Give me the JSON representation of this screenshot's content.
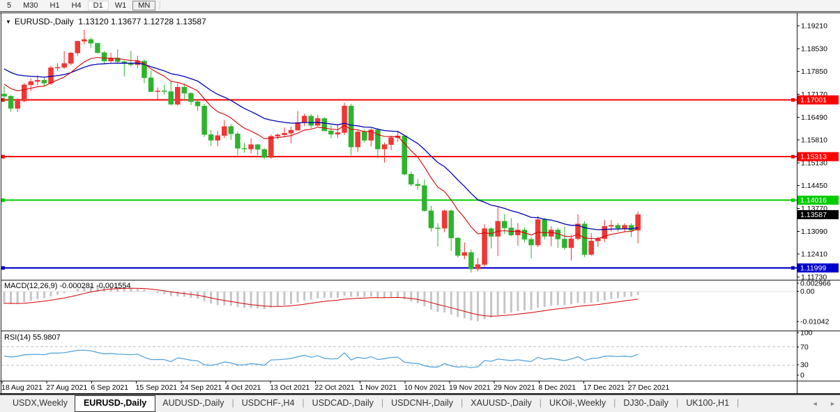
{
  "toolbar": {
    "timeframes": [
      "5",
      "M30",
      "H1",
      "H4",
      "D1",
      "W1",
      "MN"
    ],
    "selected": "D1",
    "pressed": "MN"
  },
  "chart": {
    "symbol": "EURUSD-,Daily",
    "title_text": "EURUSD-,Daily  1.13120 1.13677 1.12728 1.13587",
    "ohlc": {
      "open": "1.13120",
      "high": "1.13677",
      "low": "1.12728",
      "close": "1.13587"
    },
    "caret_icon": "▼"
  },
  "price_axis": {
    "ticks": [
      "1.19210",
      "1.18530",
      "1.17850",
      "1.17170",
      "1.16490",
      "1.15810",
      "1.15130",
      "1.14450",
      "1.13770",
      "1.13090",
      "1.12410",
      "1.11730"
    ],
    "badges": [
      {
        "value": "1.17001",
        "price": 1.17001,
        "color": "#ff0000",
        "text_color": "#ffffff"
      },
      {
        "value": "1.15313",
        "price": 1.15313,
        "color": "#ff0000",
        "text_color": "#ffffff"
      },
      {
        "value": "1.14016",
        "price": 1.14016,
        "color": "#00cc00",
        "text_color": "#ffffff"
      },
      {
        "value": "1.13587",
        "price": 1.13587,
        "color": "#000000",
        "text_color": "#ffffff"
      },
      {
        "value": "1.11999",
        "price": 1.11999,
        "color": "#0000cc",
        "text_color": "#ffffff"
      }
    ]
  },
  "indicators": {
    "macd": {
      "name": "MACD",
      "params": "12,26,9",
      "macd_value": "-0.000281",
      "signal_value": "-0.001554",
      "label_full": "MACD(12,26,9) -0.000281 -0.001554",
      "axis": [
        "0.002966",
        "0.00",
        "-0.01042"
      ]
    },
    "rsi": {
      "name": "RSI",
      "params": "14",
      "value": "55.9807",
      "label_full": "RSI(14) 55.9807",
      "axis": [
        "100",
        "70",
        "30",
        "0"
      ],
      "guides": [
        70,
        30
      ]
    }
  },
  "date_axis": {
    "labels": [
      "18 Aug 2021",
      "27 Aug 2021",
      "6 Sep 2021",
      "15 Sep 2021",
      "24 Sep 2021",
      "4 Oct 2021",
      "13 Oct 2021",
      "22 Oct 2021",
      "1 Nov 2021",
      "10 Nov 2021",
      "19 Nov 2021",
      "29 Nov 2021",
      "8 Dec 2021",
      "17 Dec 2021",
      "27 Dec 2021"
    ]
  },
  "tabs": {
    "items": [
      "USDX,Weekly",
      "EURUSD-,Daily",
      "AUDUSD-,Daily",
      "USDCHF-,H4",
      "USDCAD-,Daily",
      "USDCNH-,Daily",
      "XAUUSD-,Daily",
      "UKOil-,Weekly",
      "DJ30-,Daily",
      "UK100-,H1"
    ],
    "active": "EURUSD-,Daily",
    "scroll_left_icon": "◄",
    "scroll_right_icon": "►"
  },
  "chart_data": {
    "type": "candlestick",
    "symbol": "EURUSD-,Daily",
    "price_range": [
      1.1173,
      1.1921
    ],
    "levels": [
      {
        "value": 1.17001,
        "color": "#ff0000"
      },
      {
        "value": 1.15313,
        "color": "#ff0000"
      },
      {
        "value": 1.14016,
        "color": "#00cc00"
      },
      {
        "value": 1.11999,
        "color": "#0000cc"
      }
    ],
    "current_price": 1.13587,
    "colors": {
      "bull": "#f23535",
      "bear": "#2eb32e",
      "ma_fast": "#d40000",
      "ma_slow": "#0000b4",
      "macd_histogram": "#c6c6c6",
      "macd_signal": "#d40000",
      "rsi_line": "#4a9ede",
      "level_red": "#ff0000",
      "level_green": "#00cc00",
      "level_blue": "#0000cc"
    },
    "candles": [
      [
        1.1718,
        1.1742,
        1.1694,
        1.1711
      ],
      [
        1.1711,
        1.1715,
        1.1665,
        1.1675
      ],
      [
        1.1675,
        1.1705,
        1.1664,
        1.1697
      ],
      [
        1.1697,
        1.175,
        1.1693,
        1.1745
      ],
      [
        1.1745,
        1.1765,
        1.1726,
        1.1755
      ],
      [
        1.1755,
        1.1774,
        1.1744,
        1.1759
      ],
      [
        1.1759,
        1.1766,
        1.1741,
        1.175
      ],
      [
        1.175,
        1.1802,
        1.1745,
        1.1796
      ],
      [
        1.1796,
        1.181,
        1.1787,
        1.1797
      ],
      [
        1.1797,
        1.1845,
        1.1793,
        1.1809
      ],
      [
        1.1809,
        1.1844,
        1.1803,
        1.184
      ],
      [
        1.184,
        1.1876,
        1.1832,
        1.1875
      ],
      [
        1.1875,
        1.1909,
        1.1865,
        1.188
      ],
      [
        1.188,
        1.1886,
        1.1856,
        1.1869
      ],
      [
        1.1869,
        1.187,
        1.1837,
        1.1841
      ],
      [
        1.1841,
        1.1846,
        1.1808,
        1.1816
      ],
      [
        1.1816,
        1.1841,
        1.1811,
        1.1825
      ],
      [
        1.1825,
        1.1851,
        1.181,
        1.1814
      ],
      [
        1.1814,
        1.1818,
        1.177,
        1.181
      ],
      [
        1.181,
        1.1846,
        1.18,
        1.1805
      ],
      [
        1.1805,
        1.1832,
        1.1795,
        1.1816
      ],
      [
        1.1816,
        1.182,
        1.175,
        1.1766
      ],
      [
        1.1766,
        1.1788,
        1.1724,
        1.1725
      ],
      [
        1.1725,
        1.1737,
        1.1701,
        1.1727
      ],
      [
        1.1727,
        1.1745,
        1.1716,
        1.1725
      ],
      [
        1.1725,
        1.1755,
        1.1684,
        1.1687
      ],
      [
        1.1687,
        1.175,
        1.1683,
        1.1738
      ],
      [
        1.1738,
        1.1748,
        1.1701,
        1.172
      ],
      [
        1.172,
        1.1722,
        1.1685,
        1.1695
      ],
      [
        1.1695,
        1.1703,
        1.1667,
        1.1682
      ],
      [
        1.1682,
        1.1689,
        1.159,
        1.1597
      ],
      [
        1.1597,
        1.161,
        1.1563,
        1.158
      ],
      [
        1.158,
        1.1608,
        1.1562,
        1.1594
      ],
      [
        1.1594,
        1.164,
        1.1587,
        1.1621
      ],
      [
        1.1621,
        1.1628,
        1.1581,
        1.1599
      ],
      [
        1.1599,
        1.1605,
        1.1535,
        1.1556
      ],
      [
        1.1556,
        1.1572,
        1.1543,
        1.1554
      ],
      [
        1.1554,
        1.1586,
        1.1541,
        1.1567
      ],
      [
        1.1567,
        1.1569,
        1.1535,
        1.1553
      ],
      [
        1.1553,
        1.1556,
        1.1524,
        1.1529
      ],
      [
        1.1529,
        1.1597,
        1.1525,
        1.1592
      ],
      [
        1.1592,
        1.16,
        1.1583,
        1.1596
      ],
      [
        1.1596,
        1.1618,
        1.1589,
        1.1601
      ],
      [
        1.1601,
        1.1621,
        1.1571,
        1.161
      ],
      [
        1.161,
        1.1667,
        1.1609,
        1.1633
      ],
      [
        1.1633,
        1.1659,
        1.1622,
        1.1652
      ],
      [
        1.1652,
        1.1658,
        1.1616,
        1.1624
      ],
      [
        1.1624,
        1.1656,
        1.1621,
        1.1645
      ],
      [
        1.1645,
        1.1649,
        1.1609,
        1.1608
      ],
      [
        1.1608,
        1.1625,
        1.1585,
        1.1598
      ],
      [
        1.1598,
        1.1626,
        1.1587,
        1.1603
      ],
      [
        1.1603,
        1.1692,
        1.1596,
        1.1682
      ],
      [
        1.1682,
        1.1689,
        1.1535,
        1.156
      ],
      [
        1.156,
        1.161,
        1.1545,
        1.1605
      ],
      [
        1.1605,
        1.1612,
        1.1573,
        1.158
      ],
      [
        1.158,
        1.1616,
        1.1562,
        1.1611
      ],
      [
        1.1611,
        1.1616,
        1.1527,
        1.1554
      ],
      [
        1.1554,
        1.1573,
        1.1513,
        1.1567
      ],
      [
        1.1567,
        1.1594,
        1.1551,
        1.1588
      ],
      [
        1.1588,
        1.1609,
        1.1576,
        1.1593
      ],
      [
        1.1593,
        1.1595,
        1.1475,
        1.1479
      ],
      [
        1.1479,
        1.1487,
        1.1443,
        1.1449
      ],
      [
        1.1449,
        1.1464,
        1.1433,
        1.1445
      ],
      [
        1.1445,
        1.1464,
        1.1367,
        1.137
      ],
      [
        1.137,
        1.1385,
        1.1308,
        1.1319
      ],
      [
        1.1319,
        1.1333,
        1.1264,
        1.1318
      ],
      [
        1.1318,
        1.1374,
        1.1306,
        1.137
      ],
      [
        1.137,
        1.1374,
        1.125,
        1.1289
      ],
      [
        1.1289,
        1.1291,
        1.1231,
        1.1237
      ],
      [
        1.1237,
        1.1276,
        1.1226,
        1.1246
      ],
      [
        1.1246,
        1.1255,
        1.1186,
        1.1197
      ],
      [
        1.1197,
        1.1229,
        1.119,
        1.121
      ],
      [
        1.121,
        1.133,
        1.1203,
        1.1317
      ],
      [
        1.1317,
        1.132,
        1.1258,
        1.1294
      ],
      [
        1.1294,
        1.1383,
        1.1235,
        1.1339
      ],
      [
        1.1339,
        1.136,
        1.1301,
        1.1319
      ],
      [
        1.1319,
        1.1348,
        1.1294,
        1.1298
      ],
      [
        1.1298,
        1.1334,
        1.1266,
        1.1313
      ],
      [
        1.1313,
        1.1321,
        1.1276,
        1.1285
      ],
      [
        1.1285,
        1.1292,
        1.1228,
        1.1268
      ],
      [
        1.1268,
        1.1355,
        1.1262,
        1.1344
      ],
      [
        1.1344,
        1.1349,
        1.1285,
        1.1294
      ],
      [
        1.1294,
        1.1324,
        1.1265,
        1.1313
      ],
      [
        1.1313,
        1.1319,
        1.126,
        1.1286
      ],
      [
        1.1286,
        1.1323,
        1.1254,
        1.126
      ],
      [
        1.126,
        1.1298,
        1.1222,
        1.1287
      ],
      [
        1.1287,
        1.136,
        1.1282,
        1.1331
      ],
      [
        1.1331,
        1.1339,
        1.1232,
        1.124
      ],
      [
        1.124,
        1.1304,
        1.1236,
        1.128
      ],
      [
        1.128,
        1.1293,
        1.1262,
        1.1287
      ],
      [
        1.1287,
        1.1343,
        1.1277,
        1.1324
      ],
      [
        1.1324,
        1.1342,
        1.1308,
        1.1327
      ],
      [
        1.1327,
        1.1334,
        1.1308,
        1.1318
      ],
      [
        1.1318,
        1.1333,
        1.1306,
        1.1327
      ],
      [
        1.1327,
        1.1333,
        1.1292,
        1.1312
      ],
      [
        1.1312,
        1.13677,
        1.12728,
        1.13587
      ]
    ]
  }
}
